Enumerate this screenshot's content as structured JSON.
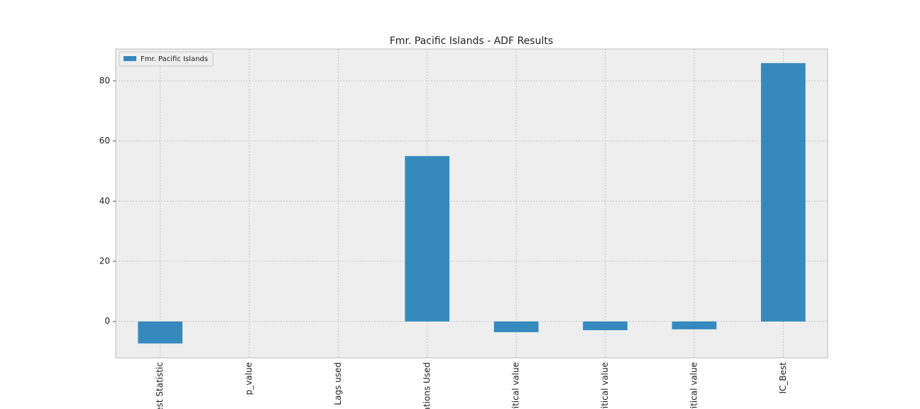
{
  "chart_data": {
    "type": "bar",
    "title": "Fmr. Pacific Islands - ADF Results",
    "categories": [
      "est Statistic",
      "p_value",
      "Lags used",
      "ations Used",
      "ritical value",
      "ritical value",
      "ritical value",
      "IC_Best"
    ],
    "series": [
      {
        "name": "Fmr. Pacific Islands",
        "color": "#348abd",
        "values": [
          -7.3,
          0,
          0,
          55,
          -3.55,
          -2.9,
          -2.6,
          85.9
        ]
      }
    ],
    "ylim": [
      -12.1,
      90.6
    ],
    "yticks": [
      0,
      20,
      40,
      60,
      80
    ],
    "grid": true,
    "legend": "upper-left"
  }
}
